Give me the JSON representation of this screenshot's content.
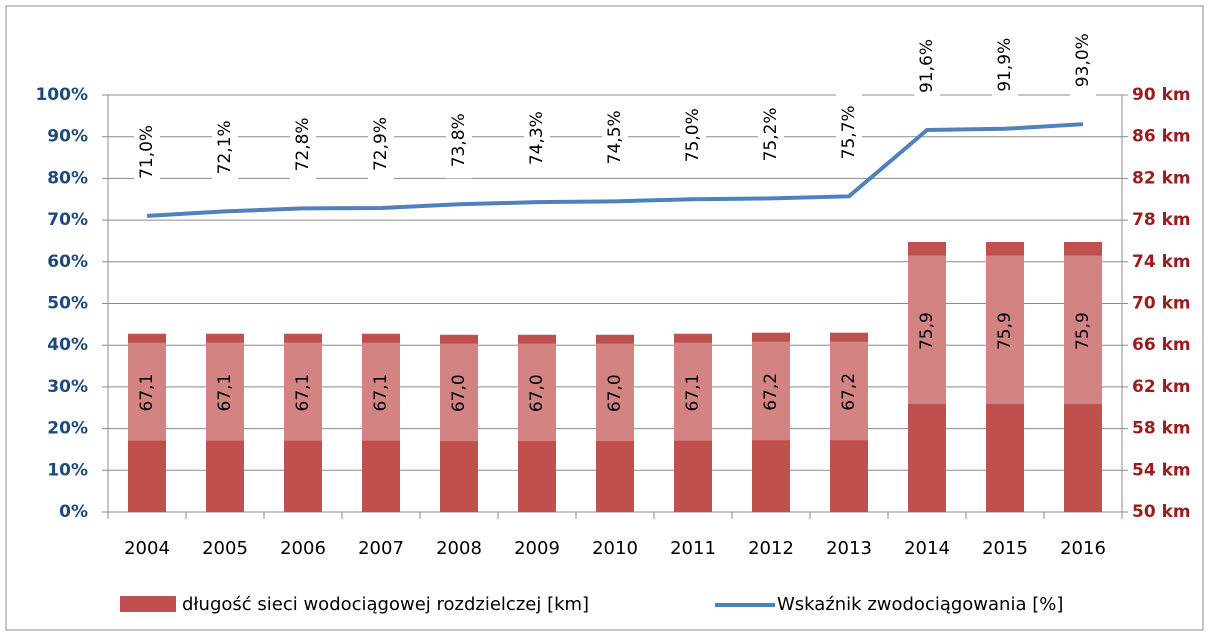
{
  "chart_data": {
    "type": "bar_line",
    "categories": [
      "2004",
      "2005",
      "2006",
      "2007",
      "2008",
      "2009",
      "2010",
      "2011",
      "2012",
      "2013",
      "2014",
      "2015",
      "2016"
    ],
    "series": [
      {
        "name": "długość sieci wodociągowej rozdzielczej [km]",
        "color": "#c0504d",
        "type": "bar",
        "axis": "y2",
        "values": [
          67.1,
          67.1,
          67.1,
          67.1,
          67.0,
          67.0,
          67.0,
          67.1,
          67.2,
          67.2,
          75.9,
          75.9,
          75.9
        ],
        "value_labels": [
          "67,1",
          "67,1",
          "67,1",
          "67,1",
          "67,0",
          "67,0",
          "67,0",
          "67,1",
          "67,2",
          "67,2",
          "75,9",
          "75,9",
          "75,9"
        ]
      },
      {
        "name": "Wskaźnik zwodociągowania [%]",
        "color": "#4f81bd",
        "type": "line",
        "values": [
          71.0,
          72.1,
          72.8,
          72.9,
          73.8,
          74.3,
          74.5,
          75.0,
          75.2,
          75.7,
          91.6,
          91.9,
          93.0
        ],
        "value_labels": [
          "71,0%",
          "72,1%",
          "72,8%",
          "72,9%",
          "73,8%",
          "74,3%",
          "74,5%",
          "75,0%",
          "75,2%",
          "75,7%",
          "91,6%",
          "91,9%",
          "93,0%"
        ]
      }
    ],
    "ylim": [
      0,
      100
    ],
    "yticks": [
      {
        "value": 0,
        "label": "0%"
      },
      {
        "value": 10,
        "label": "10%"
      },
      {
        "value": 20,
        "label": "20%"
      },
      {
        "value": 30,
        "label": "30%"
      },
      {
        "value": 40,
        "label": "40%"
      },
      {
        "value": 50,
        "label": "50%"
      },
      {
        "value": 60,
        "label": "60%"
      },
      {
        "value": 70,
        "label": "70%"
      },
      {
        "value": 80,
        "label": "80%"
      },
      {
        "value": 90,
        "label": "90%"
      },
      {
        "value": 100,
        "label": "100%"
      }
    ],
    "y2lim": [
      50,
      90
    ],
    "y2ticks": [
      {
        "value": 50,
        "label": "50 km"
      },
      {
        "value": 54,
        "label": "54 km"
      },
      {
        "value": 58,
        "label": "58 km"
      },
      {
        "value": 62,
        "label": "62 km"
      },
      {
        "value": 66,
        "label": "66 km"
      },
      {
        "value": 70,
        "label": "70 km"
      },
      {
        "value": 74,
        "label": "74 km"
      },
      {
        "value": 78,
        "label": "78 km"
      },
      {
        "value": 82,
        "label": "82 km"
      },
      {
        "value": 86,
        "label": "86 km"
      },
      {
        "value": 90,
        "label": "90 km"
      }
    ],
    "grid": true,
    "legend": "bottom"
  }
}
